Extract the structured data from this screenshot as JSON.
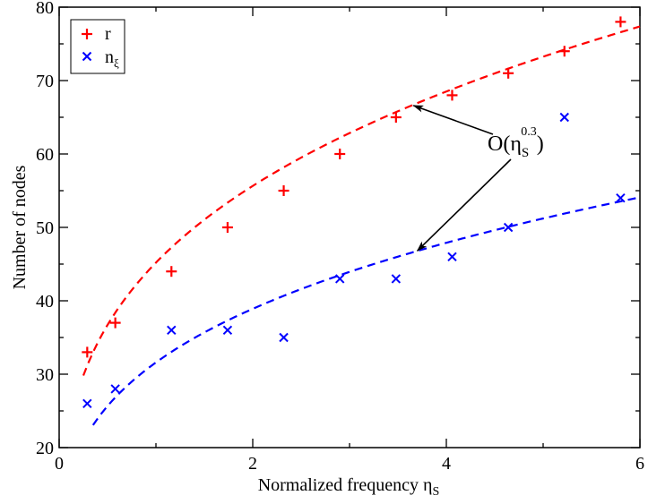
{
  "chart_data": {
    "type": "scatter",
    "title": "",
    "xlabel": "Normalized frequency η",
    "xlabel_sub": "S",
    "ylabel": "Number of nodes",
    "xlim": [
      0,
      6
    ],
    "ylim": [
      20,
      80
    ],
    "xticks": [
      0,
      2,
      4,
      6
    ],
    "yticks": [
      20,
      30,
      40,
      50,
      60,
      70,
      80
    ],
    "grid": false,
    "legend_position": "top-left",
    "series": [
      {
        "name": "r",
        "color": "#ff0000",
        "marker": "plus",
        "x": [
          0.29,
          0.58,
          1.16,
          1.74,
          2.32,
          2.9,
          3.48,
          4.06,
          4.64,
          5.22,
          5.8
        ],
        "y": [
          33,
          37,
          44,
          50,
          55,
          60,
          65,
          68,
          71,
          74,
          78
        ],
        "fit": {
          "form": "a*x^0.3",
          "a": 45.2,
          "x_range": [
            0.25,
            6
          ],
          "style": "dashed"
        }
      },
      {
        "name": "n",
        "name_sub": "ξ",
        "color": "#0000ff",
        "marker": "cross",
        "x": [
          0.29,
          0.58,
          1.16,
          1.74,
          2.32,
          2.9,
          3.48,
          4.06,
          4.64,
          5.22,
          5.8
        ],
        "y": [
          26,
          28,
          36,
          36,
          35,
          43,
          43,
          46,
          50,
          65,
          54
        ],
        "fit": {
          "form": "a*x^0.3",
          "a": 31.6,
          "x_range": [
            0.35,
            6
          ],
          "style": "dashed"
        }
      }
    ],
    "annotation": {
      "text": "O(η",
      "sub": "S",
      "sup": "0.3",
      "close": ")",
      "arrows_to": [
        [
          3.66,
          66.6
        ],
        [
          3.7,
          46.8
        ]
      ]
    }
  }
}
